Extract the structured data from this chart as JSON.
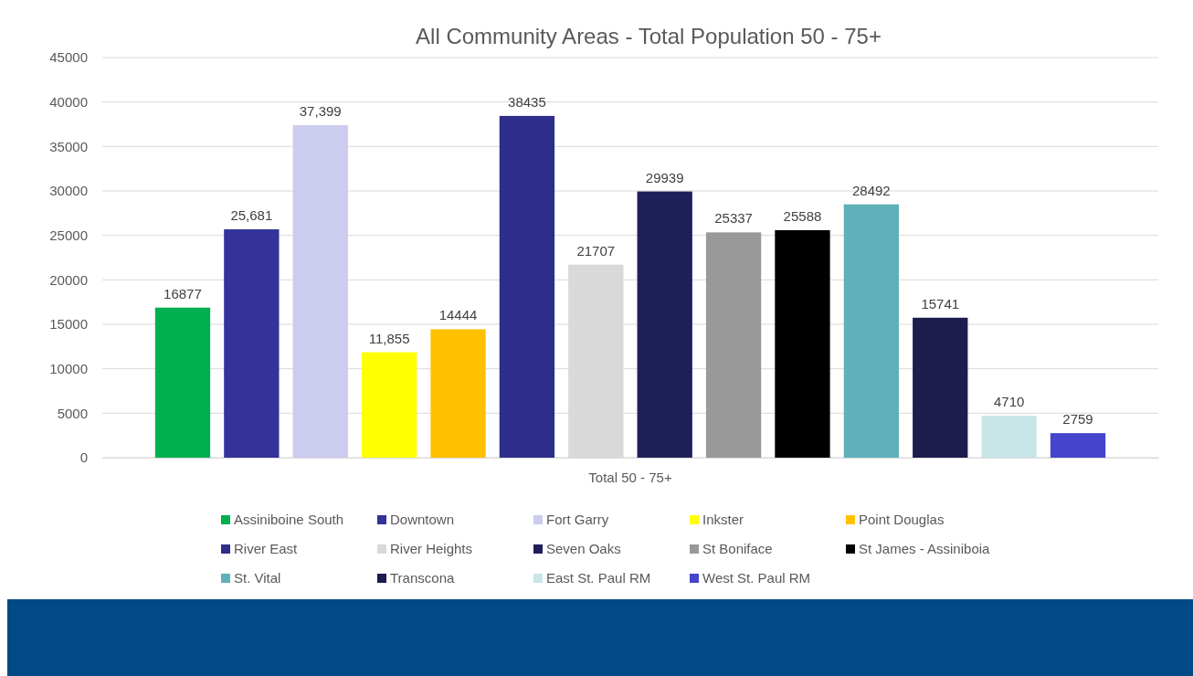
{
  "chart_data": {
    "type": "bar",
    "title": "All Community Areas - Total Population 50 - 75+",
    "categories": [
      "Total 50 - 75+"
    ],
    "ylim": [
      0,
      45000
    ],
    "yticks": [
      0,
      5000,
      10000,
      15000,
      20000,
      25000,
      30000,
      35000,
      40000,
      45000
    ],
    "grid": "y",
    "legend": "bottom",
    "series": [
      {
        "name": "Assiniboine South",
        "color": "#00b050",
        "values": [
          16877
        ],
        "value_labels": [
          "16877"
        ]
      },
      {
        "name": "Downtown",
        "color": "#333399",
        "values": [
          25681
        ],
        "value_labels": [
          "25,681"
        ]
      },
      {
        "name": "Fort Garry",
        "color": "#ccccee",
        "values": [
          37399
        ],
        "value_labels": [
          "37,399"
        ]
      },
      {
        "name": "Inkster",
        "color": "#ffff00",
        "values": [
          11855
        ],
        "value_labels": [
          "11,855"
        ]
      },
      {
        "name": "Point Douglas",
        "color": "#ffc000",
        "values": [
          14444
        ],
        "value_labels": [
          "14444"
        ]
      },
      {
        "name": "River East",
        "color": "#2e2e8a",
        "values": [
          38435
        ],
        "value_labels": [
          "38435"
        ]
      },
      {
        "name": "River Heights",
        "color": "#d9d9d9",
        "values": [
          21707
        ],
        "value_labels": [
          "21707"
        ]
      },
      {
        "name": "Seven Oaks",
        "color": "#1f1f5a",
        "values": [
          29939
        ],
        "value_labels": [
          "29939"
        ]
      },
      {
        "name": "St Boniface",
        "color": "#999999",
        "values": [
          25337
        ],
        "value_labels": [
          "25337"
        ]
      },
      {
        "name": "St James - Assiniboia",
        "color": "#000000",
        "values": [
          25588
        ],
        "value_labels": [
          "25588"
        ]
      },
      {
        "name": "St. Vital",
        "color": "#5eb0b9",
        "values": [
          28492
        ],
        "value_labels": [
          "28492"
        ]
      },
      {
        "name": "Transcona",
        "color": "#1c1c4e",
        "values": [
          15741
        ],
        "value_labels": [
          "15741"
        ]
      },
      {
        "name": "East St. Paul RM",
        "color": "#c8e6e8",
        "values": [
          4710
        ],
        "value_labels": [
          "4710"
        ]
      },
      {
        "name": "West St. Paul RM",
        "color": "#4444cc",
        "values": [
          2759
        ],
        "value_labels": [
          "2759"
        ]
      }
    ]
  }
}
